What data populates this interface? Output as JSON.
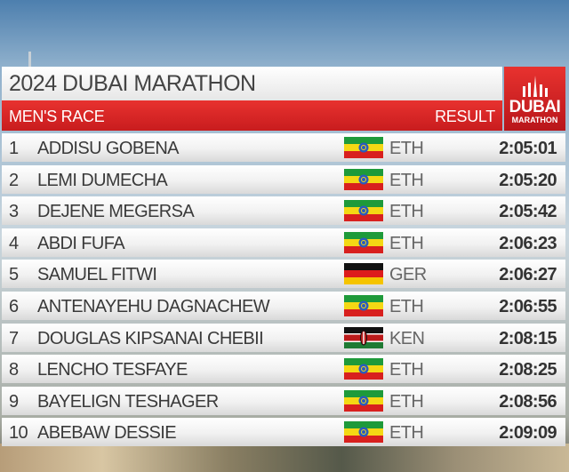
{
  "header": {
    "title": "2024 DUBAI MARATHON",
    "race": "MEN'S RACE",
    "result_label": "RESULT",
    "logo_top": "DUBAI",
    "logo_bottom": "MARATHON"
  },
  "table": {
    "rows": [
      [
        "1",
        "ADDISU GOBENA",
        "ETH",
        "2:05:01"
      ],
      [
        "2",
        "LEMI DUMECHA",
        "ETH",
        "2:05:20"
      ],
      [
        "3",
        "DEJENE MEGERSA",
        "ETH",
        "2:05:42"
      ],
      [
        "4",
        "ABDI FUFA",
        "ETH",
        "2:06:23"
      ],
      [
        "5",
        "SAMUEL FITWI",
        "GER",
        "2:06:27"
      ],
      [
        "6",
        "ANTENAYEHU DAGNACHEW",
        "ETH",
        "2:06:55"
      ],
      [
        "7",
        "DOUGLAS KIPSANAI CHEBII",
        "KEN",
        "2:08:15"
      ],
      [
        "8",
        "LENCHO TESFAYE",
        "ETH",
        "2:08:25"
      ],
      [
        "9",
        "BAYELIGN TESHAGER",
        "ETH",
        "2:08:56"
      ],
      [
        "10",
        "ABEBAW DESSIE",
        "ETH",
        "2:09:09"
      ]
    ]
  }
}
